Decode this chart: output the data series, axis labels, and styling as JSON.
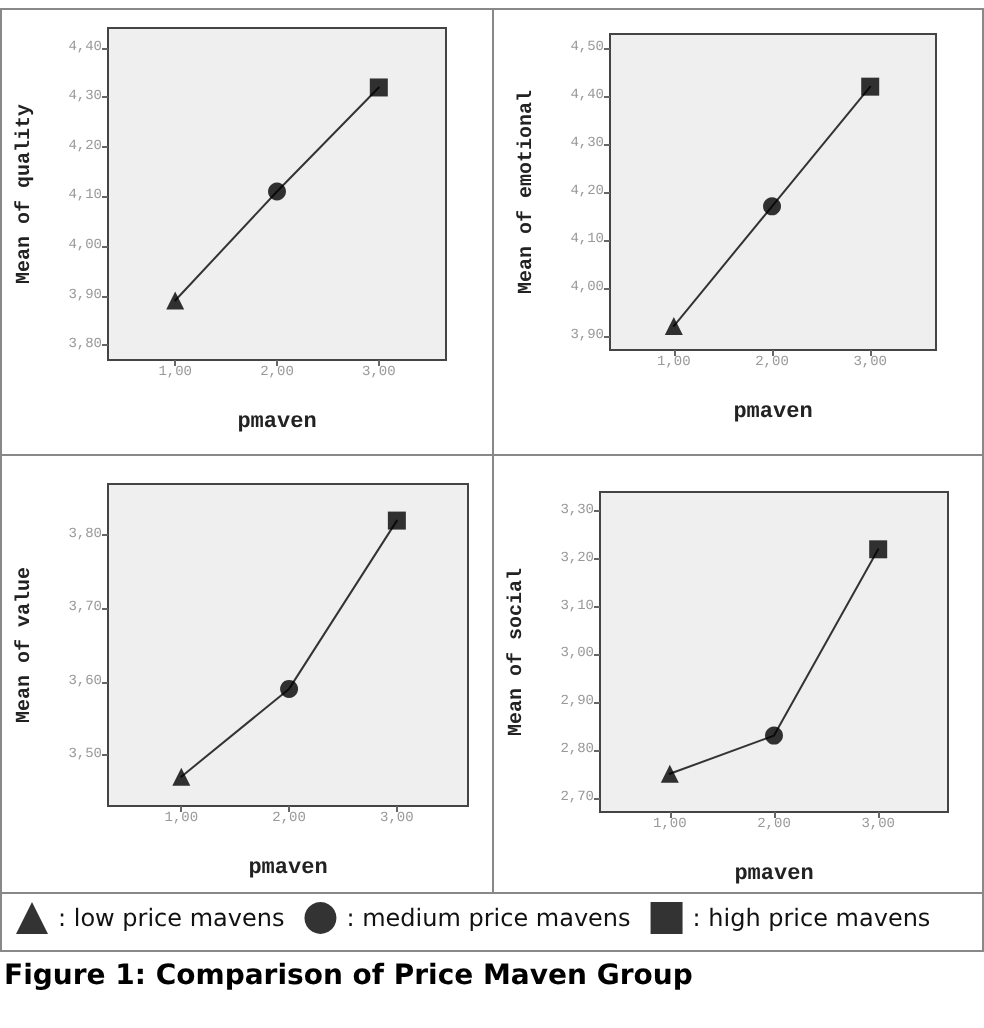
{
  "chart_data": [
    {
      "type": "line",
      "xlabel": "pmaven",
      "ylabel": "Mean of quality",
      "xlim": [
        0.34,
        3.66
      ],
      "xticks": [
        {
          "value": 1,
          "label": "1,00"
        },
        {
          "value": 2,
          "label": "2,00"
        },
        {
          "value": 3,
          "label": "3,00"
        }
      ],
      "ylim": [
        3.77,
        4.44
      ],
      "yticks": [
        {
          "value": 3.8,
          "label": "3,80"
        },
        {
          "value": 3.9,
          "label": "3,90"
        },
        {
          "value": 4.0,
          "label": "4,00"
        },
        {
          "value": 4.1,
          "label": "4,10"
        },
        {
          "value": 4.2,
          "label": "4,20"
        },
        {
          "value": 4.3,
          "label": "4,30"
        },
        {
          "value": 4.4,
          "label": "4,40"
        }
      ],
      "grid": false,
      "legend": false,
      "series": [
        {
          "color": "#333333",
          "marker": "none",
          "line_style": "solid",
          "x": [
            1,
            2,
            3
          ],
          "values": [
            3.89,
            4.11,
            4.32
          ]
        },
        {
          "type": "scatter",
          "color": "#000000",
          "marker": "triangle",
          "x": [
            1
          ],
          "values": [
            3.89
          ]
        },
        {
          "type": "scatter",
          "color": "#000000",
          "marker": "circle",
          "x": [
            2
          ],
          "values": [
            4.11
          ]
        },
        {
          "type": "scatter",
          "color": "#000000",
          "marker": "square",
          "x": [
            3
          ],
          "values": [
            4.32
          ]
        }
      ]
    },
    {
      "type": "line",
      "xlabel": "pmaven",
      "ylabel": "Mean of emotional",
      "xlim": [
        0.35,
        3.67
      ],
      "xticks": [
        {
          "value": 1,
          "label": "1,00"
        },
        {
          "value": 2,
          "label": "2,00"
        },
        {
          "value": 3,
          "label": "3,00"
        }
      ],
      "ylim": [
        3.87,
        4.53
      ],
      "yticks": [
        {
          "value": 3.9,
          "label": "3,90"
        },
        {
          "value": 4.0,
          "label": "4,00"
        },
        {
          "value": 4.1,
          "label": "4,10"
        },
        {
          "value": 4.2,
          "label": "4,20"
        },
        {
          "value": 4.3,
          "label": "4,30"
        },
        {
          "value": 4.4,
          "label": "4,40"
        },
        {
          "value": 4.5,
          "label": "4,50"
        }
      ],
      "grid": false,
      "legend": false,
      "series": [
        {
          "color": "#333333",
          "marker": "none",
          "line_style": "solid",
          "x": [
            1,
            2,
            3
          ],
          "values": [
            3.92,
            4.17,
            4.42
          ]
        },
        {
          "type": "scatter",
          "color": "#000000",
          "marker": "triangle",
          "x": [
            1
          ],
          "values": [
            3.92
          ]
        },
        {
          "type": "scatter",
          "color": "#000000",
          "marker": "circle",
          "x": [
            2
          ],
          "values": [
            4.17
          ]
        },
        {
          "type": "scatter",
          "color": "#000000",
          "marker": "square",
          "x": [
            3
          ],
          "values": [
            4.42
          ]
        }
      ]
    },
    {
      "type": "line",
      "xlabel": "pmaven",
      "ylabel": "Mean of value",
      "xlim": [
        0.32,
        3.66
      ],
      "xticks": [
        {
          "value": 1,
          "label": "1,00"
        },
        {
          "value": 2,
          "label": "2,00"
        },
        {
          "value": 3,
          "label": "3,00"
        }
      ],
      "ylim": [
        3.43,
        3.87
      ],
      "yticks": [
        {
          "value": 3.5,
          "label": "3,50"
        },
        {
          "value": 3.6,
          "label": "3,60"
        },
        {
          "value": 3.7,
          "label": "3,70"
        },
        {
          "value": 3.8,
          "label": "3,80"
        }
      ],
      "grid": false,
      "legend": false,
      "series": [
        {
          "color": "#333333",
          "marker": "none",
          "line_style": "solid",
          "x": [
            1,
            2,
            3
          ],
          "values": [
            3.47,
            3.59,
            3.82
          ]
        },
        {
          "type": "scatter",
          "color": "#000000",
          "marker": "triangle",
          "x": [
            1
          ],
          "values": [
            3.47
          ]
        },
        {
          "type": "scatter",
          "color": "#000000",
          "marker": "circle",
          "x": [
            2
          ],
          "values": [
            3.59
          ]
        },
        {
          "type": "scatter",
          "color": "#000000",
          "marker": "square",
          "x": [
            3
          ],
          "values": [
            3.82
          ]
        }
      ]
    },
    {
      "type": "line",
      "xlabel": "pmaven",
      "ylabel": "Mean of social",
      "xlim": [
        0.33,
        3.67
      ],
      "xticks": [
        {
          "value": 1,
          "label": "1,00"
        },
        {
          "value": 2,
          "label": "2,00"
        },
        {
          "value": 3,
          "label": "3,00"
        }
      ],
      "ylim": [
        2.67,
        3.34
      ],
      "yticks": [
        {
          "value": 2.7,
          "label": "2,70"
        },
        {
          "value": 2.8,
          "label": "2,80"
        },
        {
          "value": 2.9,
          "label": "2,90"
        },
        {
          "value": 3.0,
          "label": "3,00"
        },
        {
          "value": 3.1,
          "label": "3,10"
        },
        {
          "value": 3.2,
          "label": "3,20"
        },
        {
          "value": 3.3,
          "label": "3,30"
        }
      ],
      "grid": false,
      "legend": "bottom",
      "annotations": [
        "Figure 1: Comparison of Price Maven Group"
      ],
      "series": [
        {
          "color": "#333333",
          "marker": "none",
          "line_style": "solid",
          "x": [
            1,
            2,
            3
          ],
          "values": [
            2.75,
            2.83,
            3.22
          ]
        },
        {
          "type": "scatter",
          "name": ": low price mavens",
          "color": "#000000",
          "marker": "triangle",
          "x": [
            1
          ],
          "values": [
            2.75
          ]
        },
        {
          "type": "scatter",
          "name": ": medium price mavens",
          "color": "#000000",
          "marker": "circle",
          "x": [
            2
          ],
          "values": [
            2.83
          ]
        },
        {
          "type": "scatter",
          "name": ": high price mavens",
          "color": "#000000",
          "marker": "square",
          "x": [
            3
          ],
          "values": [
            3.22
          ]
        }
      ]
    }
  ]
}
